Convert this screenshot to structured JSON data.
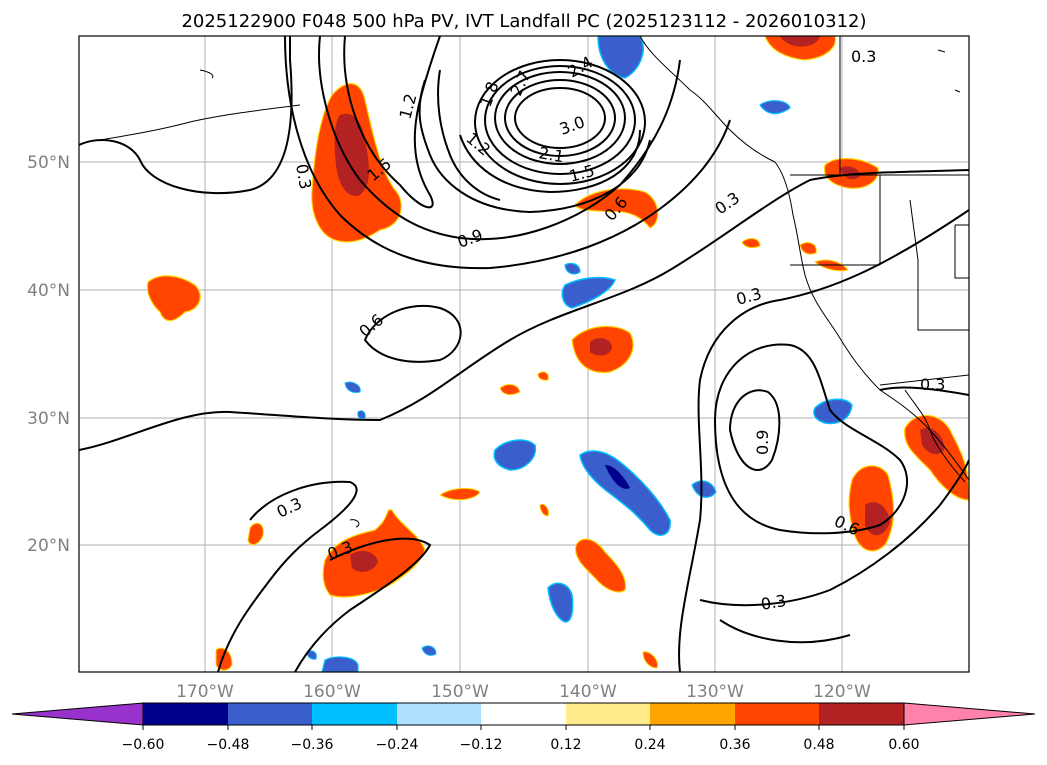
{
  "title": "2025122900 F048 500 hPa PV, IVT Landfall PC (2025123112 - 2026010312)",
  "map": {
    "lon_ticks": [
      "170°W",
      "160°W",
      "150°W",
      "140°W",
      "130°W",
      "120°W"
    ],
    "lat_ticks": [
      "50°N",
      "40°N",
      "30°N",
      "20°N"
    ]
  },
  "contour_labels": [
    {
      "id": "c1",
      "text": "0.3"
    },
    {
      "id": "c2",
      "text": "1.2"
    },
    {
      "id": "c3",
      "text": "1.5"
    },
    {
      "id": "c4",
      "text": "1.8"
    },
    {
      "id": "c5",
      "text": "2.7"
    },
    {
      "id": "c6",
      "text": "2.4"
    },
    {
      "id": "c7",
      "text": "3.0"
    },
    {
      "id": "c8",
      "text": "1.2"
    },
    {
      "id": "c9",
      "text": "2.1"
    },
    {
      "id": "c10",
      "text": "1.5"
    },
    {
      "id": "c11",
      "text": "0.9"
    },
    {
      "id": "c12",
      "text": "0.6"
    },
    {
      "id": "c13",
      "text": "0.3"
    },
    {
      "id": "c14",
      "text": "0.3"
    },
    {
      "id": "c15",
      "text": "0.6"
    },
    {
      "id": "c16",
      "text": "0.3"
    },
    {
      "id": "c17",
      "text": "0.9"
    },
    {
      "id": "c18",
      "text": "0.6"
    },
    {
      "id": "c19",
      "text": "0.3"
    },
    {
      "id": "c20",
      "text": "0.3"
    },
    {
      "id": "c21",
      "text": "0.3"
    }
  ],
  "colorbar": {
    "ticks": [
      "−0.60",
      "−0.48",
      "−0.36",
      "−0.24",
      "−0.12",
      "0.12",
      "0.24",
      "0.36",
      "0.48",
      "0.60"
    ],
    "colors": [
      "#9932cc",
      "#00008b",
      "#3a5fcd",
      "#00bfff",
      "#b0e2ff",
      "#ffffff",
      "#ffeb8c",
      "#ffa500",
      "#ff4500",
      "#b22222",
      "#ff82ab"
    ]
  }
}
